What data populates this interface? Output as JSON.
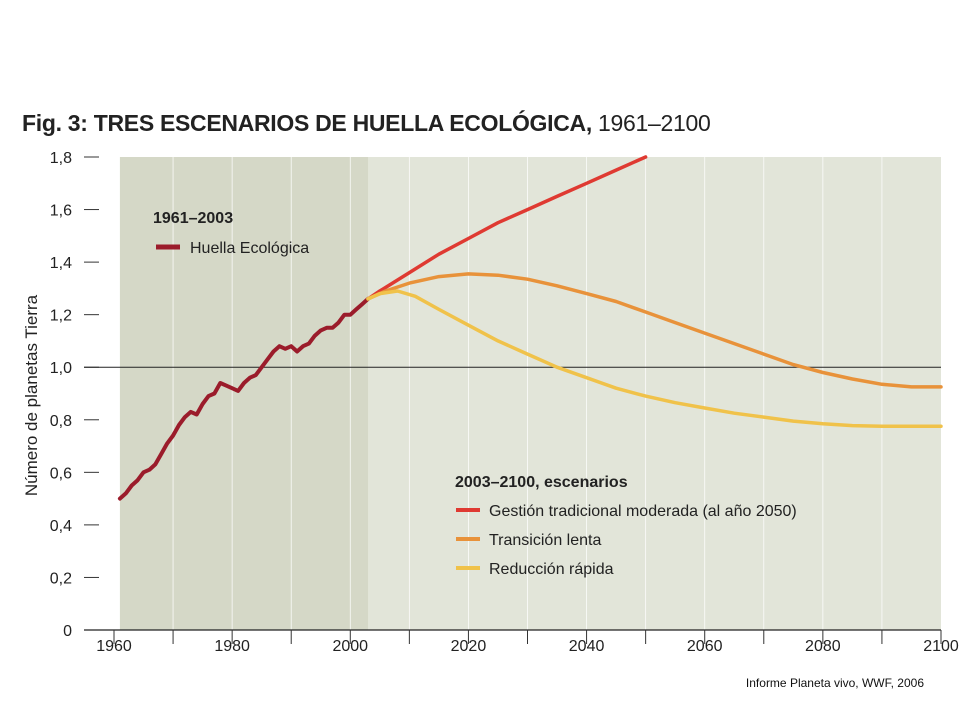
{
  "title": {
    "prefix": "Fig. 3:",
    "main": "TRES ESCENARIOS DE HUELLA ECOLÓGICA,",
    "years": "1961–2100"
  },
  "credit": "Informe Planeta vivo, WWF, 2006",
  "colors": {
    "historic_bg": "#d5d8c7",
    "scenario_bg": "#e2e5d9",
    "historic": "#9b1c2b",
    "gestion": "#df3a32",
    "transicion": "#e8923a",
    "reduccion": "#f0c24a"
  },
  "chart_data": {
    "type": "line",
    "ylabel": "Número de planetas Tierra",
    "xlabel": "",
    "xlim": [
      1960,
      2100
    ],
    "ylim": [
      0,
      1.8
    ],
    "x_ticks": [
      1960,
      1980,
      2000,
      2020,
      2040,
      2060,
      2080,
      2100
    ],
    "y_ticks": [
      {
        "v": 0,
        "label": "0"
      },
      {
        "v": 0.2,
        "label": "0,2"
      },
      {
        "v": 0.4,
        "label": "0,4"
      },
      {
        "v": 0.6,
        "label": "0,6"
      },
      {
        "v": 0.8,
        "label": "0,8"
      },
      {
        "v": 1.0,
        "label": "1,0"
      },
      {
        "v": 1.2,
        "label": "1,2"
      },
      {
        "v": 1.4,
        "label": "1,4"
      },
      {
        "v": 1.6,
        "label": "1,6"
      },
      {
        "v": 1.8,
        "label": "1,8"
      }
    ],
    "reference_line": 1.0,
    "historic_range": [
      1961,
      2003
    ],
    "legend_historic": {
      "heading": "1961–2003",
      "entry": "Huella Ecológica"
    },
    "legend_scenarios": {
      "heading": "2003–2100, escenarios",
      "entries": [
        "Gestión tradicional moderada (al año 2050)",
        "Transición lenta",
        "Reducción rápida"
      ]
    },
    "series": [
      {
        "name": "Huella Ecológica",
        "color_key": "historic",
        "x": [
          1961,
          1962,
          1963,
          1964,
          1965,
          1966,
          1967,
          1968,
          1969,
          1970,
          1971,
          1972,
          1973,
          1974,
          1975,
          1976,
          1977,
          1978,
          1979,
          1980,
          1981,
          1982,
          1983,
          1984,
          1985,
          1986,
          1987,
          1988,
          1989,
          1990,
          1991,
          1992,
          1993,
          1994,
          1995,
          1996,
          1997,
          1998,
          1999,
          2000,
          2001,
          2002,
          2003
        ],
        "y": [
          0.5,
          0.52,
          0.55,
          0.57,
          0.6,
          0.61,
          0.63,
          0.67,
          0.71,
          0.74,
          0.78,
          0.81,
          0.83,
          0.82,
          0.86,
          0.89,
          0.9,
          0.94,
          0.93,
          0.92,
          0.91,
          0.94,
          0.96,
          0.97,
          1.0,
          1.03,
          1.06,
          1.08,
          1.07,
          1.08,
          1.06,
          1.08,
          1.09,
          1.12,
          1.14,
          1.15,
          1.15,
          1.17,
          1.2,
          1.2,
          1.22,
          1.24,
          1.26
        ]
      },
      {
        "name": "Gestión tradicional moderada (al año 2050)",
        "color_key": "gestion",
        "x": [
          2003,
          2005,
          2010,
          2015,
          2020,
          2025,
          2030,
          2035,
          2040,
          2045,
          2050
        ],
        "y": [
          1.26,
          1.29,
          1.36,
          1.43,
          1.49,
          1.55,
          1.6,
          1.65,
          1.7,
          1.75,
          1.8
        ]
      },
      {
        "name": "Transición lenta",
        "color_key": "transicion",
        "x": [
          2003,
          2006,
          2010,
          2015,
          2020,
          2025,
          2030,
          2035,
          2040,
          2045,
          2050,
          2055,
          2060,
          2065,
          2070,
          2075,
          2080,
          2085,
          2090,
          2095,
          2100
        ],
        "y": [
          1.26,
          1.29,
          1.32,
          1.345,
          1.355,
          1.35,
          1.335,
          1.31,
          1.28,
          1.25,
          1.21,
          1.17,
          1.13,
          1.09,
          1.05,
          1.01,
          0.98,
          0.955,
          0.935,
          0.925,
          0.925
        ]
      },
      {
        "name": "Reducción rápida",
        "color_key": "reduccion",
        "x": [
          2003,
          2005,
          2008,
          2011,
          2015,
          2020,
          2025,
          2030,
          2035,
          2040,
          2045,
          2050,
          2055,
          2060,
          2065,
          2070,
          2075,
          2080,
          2085,
          2090,
          2095,
          2100
        ],
        "y": [
          1.26,
          1.28,
          1.29,
          1.27,
          1.22,
          1.16,
          1.1,
          1.05,
          1.0,
          0.96,
          0.92,
          0.89,
          0.865,
          0.845,
          0.825,
          0.81,
          0.795,
          0.785,
          0.778,
          0.775,
          0.775,
          0.775
        ]
      }
    ]
  }
}
